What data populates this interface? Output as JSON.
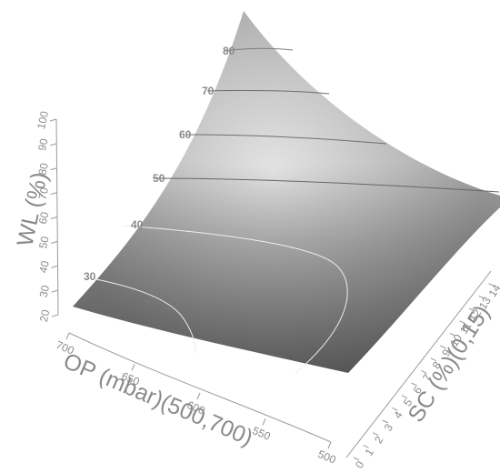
{
  "chart_data": {
    "type": "surface",
    "title": "",
    "xlabel": "OP (mbar)(500,700)",
    "ylabel": "SC (%)(0,15)",
    "zlabel": "WL (%)",
    "x_range": [
      500,
      700
    ],
    "y_range": [
      0,
      15
    ],
    "z_range": [
      20,
      100
    ],
    "x_ticks": [
      "700",
      "650",
      "600",
      "550",
      "500"
    ],
    "y_ticks": [
      "0",
      "1",
      "2",
      "3",
      "4",
      "5",
      "6",
      "7",
      "8",
      "9",
      "10",
      "11",
      "12",
      "13",
      "14"
    ],
    "z_ticks": [
      "20",
      "30",
      "40",
      "50",
      "60",
      "70",
      "80",
      "90",
      "100"
    ],
    "contour_labels": [
      "30",
      "40",
      "50",
      "60",
      "70",
      "80"
    ],
    "corner_values": [
      {
        "x": 700,
        "y": 0,
        "z": 27
      },
      {
        "x": 500,
        "y": 0,
        "z": 28
      },
      {
        "x": 500,
        "y": 15,
        "z": 55
      },
      {
        "x": 700,
        "y": 15,
        "z": 95
      }
    ],
    "colors": {
      "surface_dark": "#5f5f5f",
      "surface_light": "#e3e3e3",
      "axis": "#9a9a9a"
    }
  }
}
